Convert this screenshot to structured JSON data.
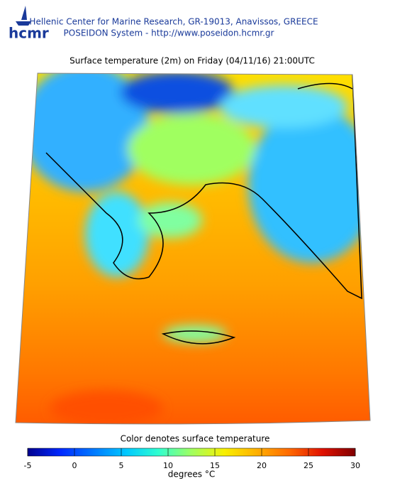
{
  "header": {
    "logo": "hcmr",
    "organization": "Hellenic Center for Marine Research, GR-19013, Anavissos, GREECE",
    "system": "POSEIDON System - http://www.poseidon.hcmr.gr"
  },
  "map": {
    "title": "Surface temperature (2m) on Friday (04/11/16) 21:00UTC"
  },
  "colorbar": {
    "title": "Color denotes surface temperature",
    "range": [
      -5,
      30
    ],
    "ticks": [
      -5,
      0,
      5,
      10,
      15,
      20,
      25,
      30
    ],
    "unit_label": "degrees °C",
    "colors": [
      "#00008f",
      "#0028ff",
      "#0078ff",
      "#00c8ff",
      "#30ffd0",
      "#a0ff60",
      "#f8f000",
      "#ffb000",
      "#ff6800",
      "#e01000",
      "#800000"
    ]
  }
}
